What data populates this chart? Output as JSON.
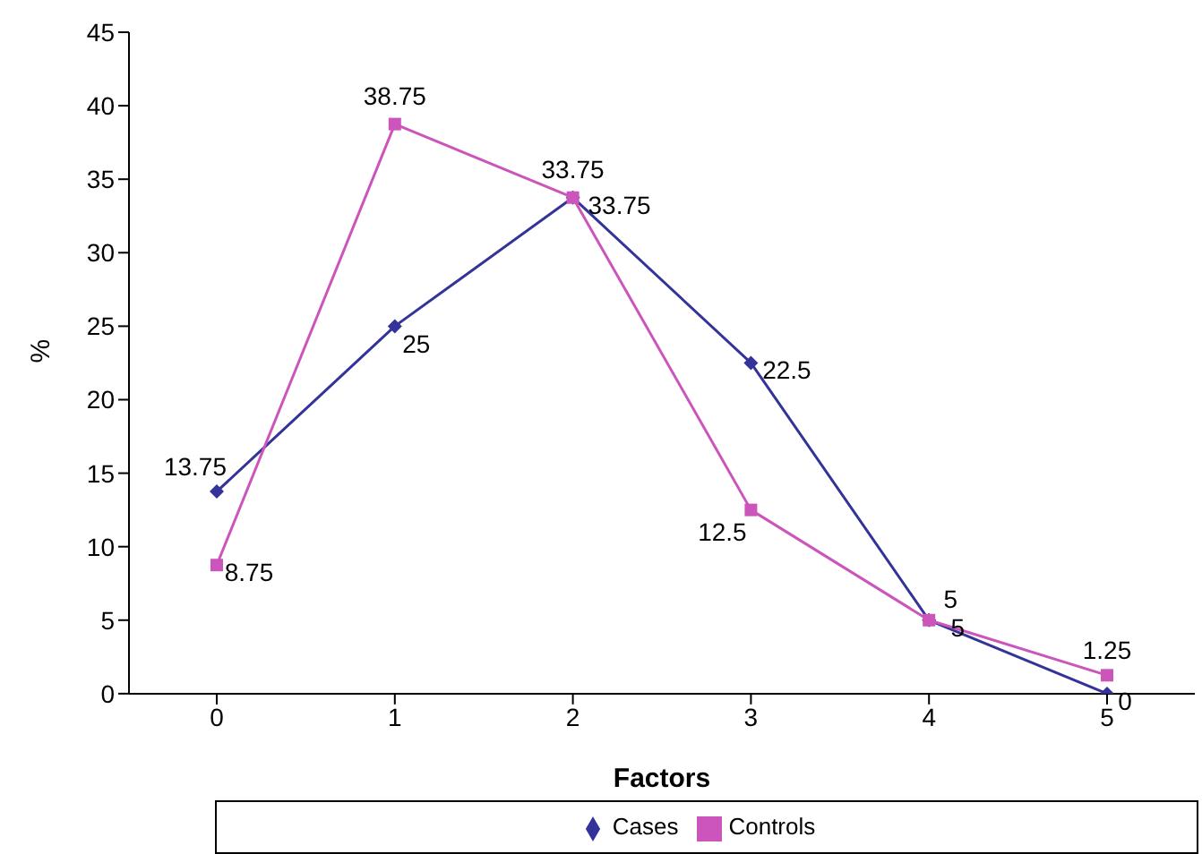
{
  "chart_data": {
    "type": "line",
    "xlabel": "Factors",
    "ylabel": "%",
    "categories": [
      "0",
      "1",
      "2",
      "3",
      "4",
      "5"
    ],
    "series": [
      {
        "name": "Cases",
        "color": "#333399",
        "marker": "diamond",
        "values": [
          13.75,
          25,
          33.75,
          22.5,
          5,
          0
        ]
      },
      {
        "name": "Controls",
        "color": "#cc55bb",
        "marker": "square",
        "values": [
          8.75,
          38.75,
          33.75,
          12.5,
          5,
          1.25
        ]
      }
    ],
    "ylim": [
      0,
      45
    ],
    "yticks": [
      0,
      5,
      10,
      15,
      20,
      25,
      30,
      35,
      40,
      45
    ],
    "data_labels": true,
    "legend": "bottom",
    "grid": false
  }
}
